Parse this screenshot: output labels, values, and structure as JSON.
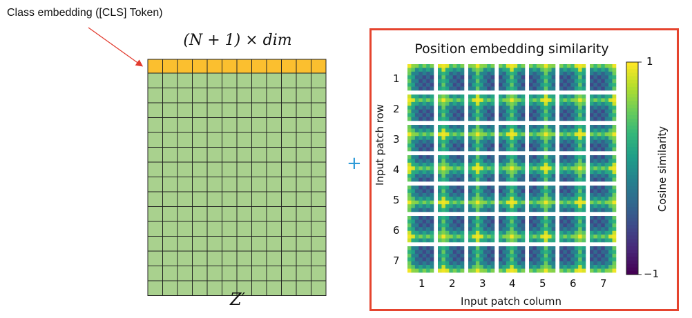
{
  "left_diagram": {
    "cls_label": "Class embedding  ([CLS] Token)",
    "shape_label": "(N + 1) × dim",
    "matrix_label": "Z′",
    "matrix_columns": 12,
    "matrix_rows": 15,
    "cls_color": "#fbbf2f",
    "body_color": "#a9d18e",
    "arrow_color": "#e23b2e"
  },
  "plus_symbol": "+",
  "right_panel": {
    "border_color": "#e5442e",
    "title": "Position embedding similarity",
    "y_axis_label": "Input patch row",
    "x_axis_label": "Input patch column",
    "row_ticks": [
      "1",
      "2",
      "3",
      "4",
      "5",
      "6",
      "7"
    ],
    "col_ticks": [
      "1",
      "2",
      "3",
      "4",
      "5",
      "6",
      "7"
    ],
    "colorbar": {
      "label": "Cosine similarity",
      "max_label": "1",
      "min_label": "−1",
      "colormap": "viridis"
    }
  }
}
